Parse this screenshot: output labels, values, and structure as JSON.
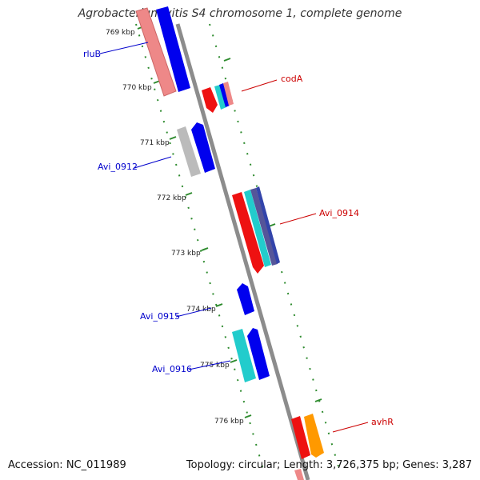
{
  "title": "Agrobacterium vitis S4 chromosome 1, complete genome",
  "accession": "Accession: NC_011989",
  "topology": "Topology: circular; Length: 3,726,375 bp; Genes: 3,287",
  "ticks": [
    {
      "label": "769 kbp",
      "pos": 769
    },
    {
      "label": "770 kbp",
      "pos": 770
    },
    {
      "label": "771 kbp",
      "pos": 771
    },
    {
      "label": "772 kbp",
      "pos": 772
    },
    {
      "label": "773 kbp",
      "pos": 773
    },
    {
      "label": "774 kbp",
      "pos": 774
    },
    {
      "label": "775 kbp",
      "pos": 775
    },
    {
      "label": "776 kbp",
      "pos": 776
    }
  ],
  "gene_labels": [
    {
      "name": "rluB",
      "side": "left",
      "color": "#0000cc"
    },
    {
      "name": "codA",
      "side": "right",
      "color": "#cc0000"
    },
    {
      "name": "Avi_0912",
      "side": "left",
      "color": "#0000cc"
    },
    {
      "name": "Avi_0914",
      "side": "right",
      "color": "#cc0000"
    },
    {
      "name": "Avi_0915",
      "side": "left",
      "color": "#0000cc"
    },
    {
      "name": "Avi_0916",
      "side": "left",
      "color": "#0000cc"
    },
    {
      "name": "avhR",
      "side": "right",
      "color": "#cc0000"
    }
  ],
  "colors": {
    "backbone": "#8c8c8c",
    "tick": "#2e8b2e",
    "strand_minus": "#0000ee",
    "strand_plus": "#ee1111",
    "cyan": "#22cccc",
    "pink": "#ee8888",
    "grey": "#bbbbbb",
    "orange": "#ff9900",
    "purple": "#555599"
  }
}
